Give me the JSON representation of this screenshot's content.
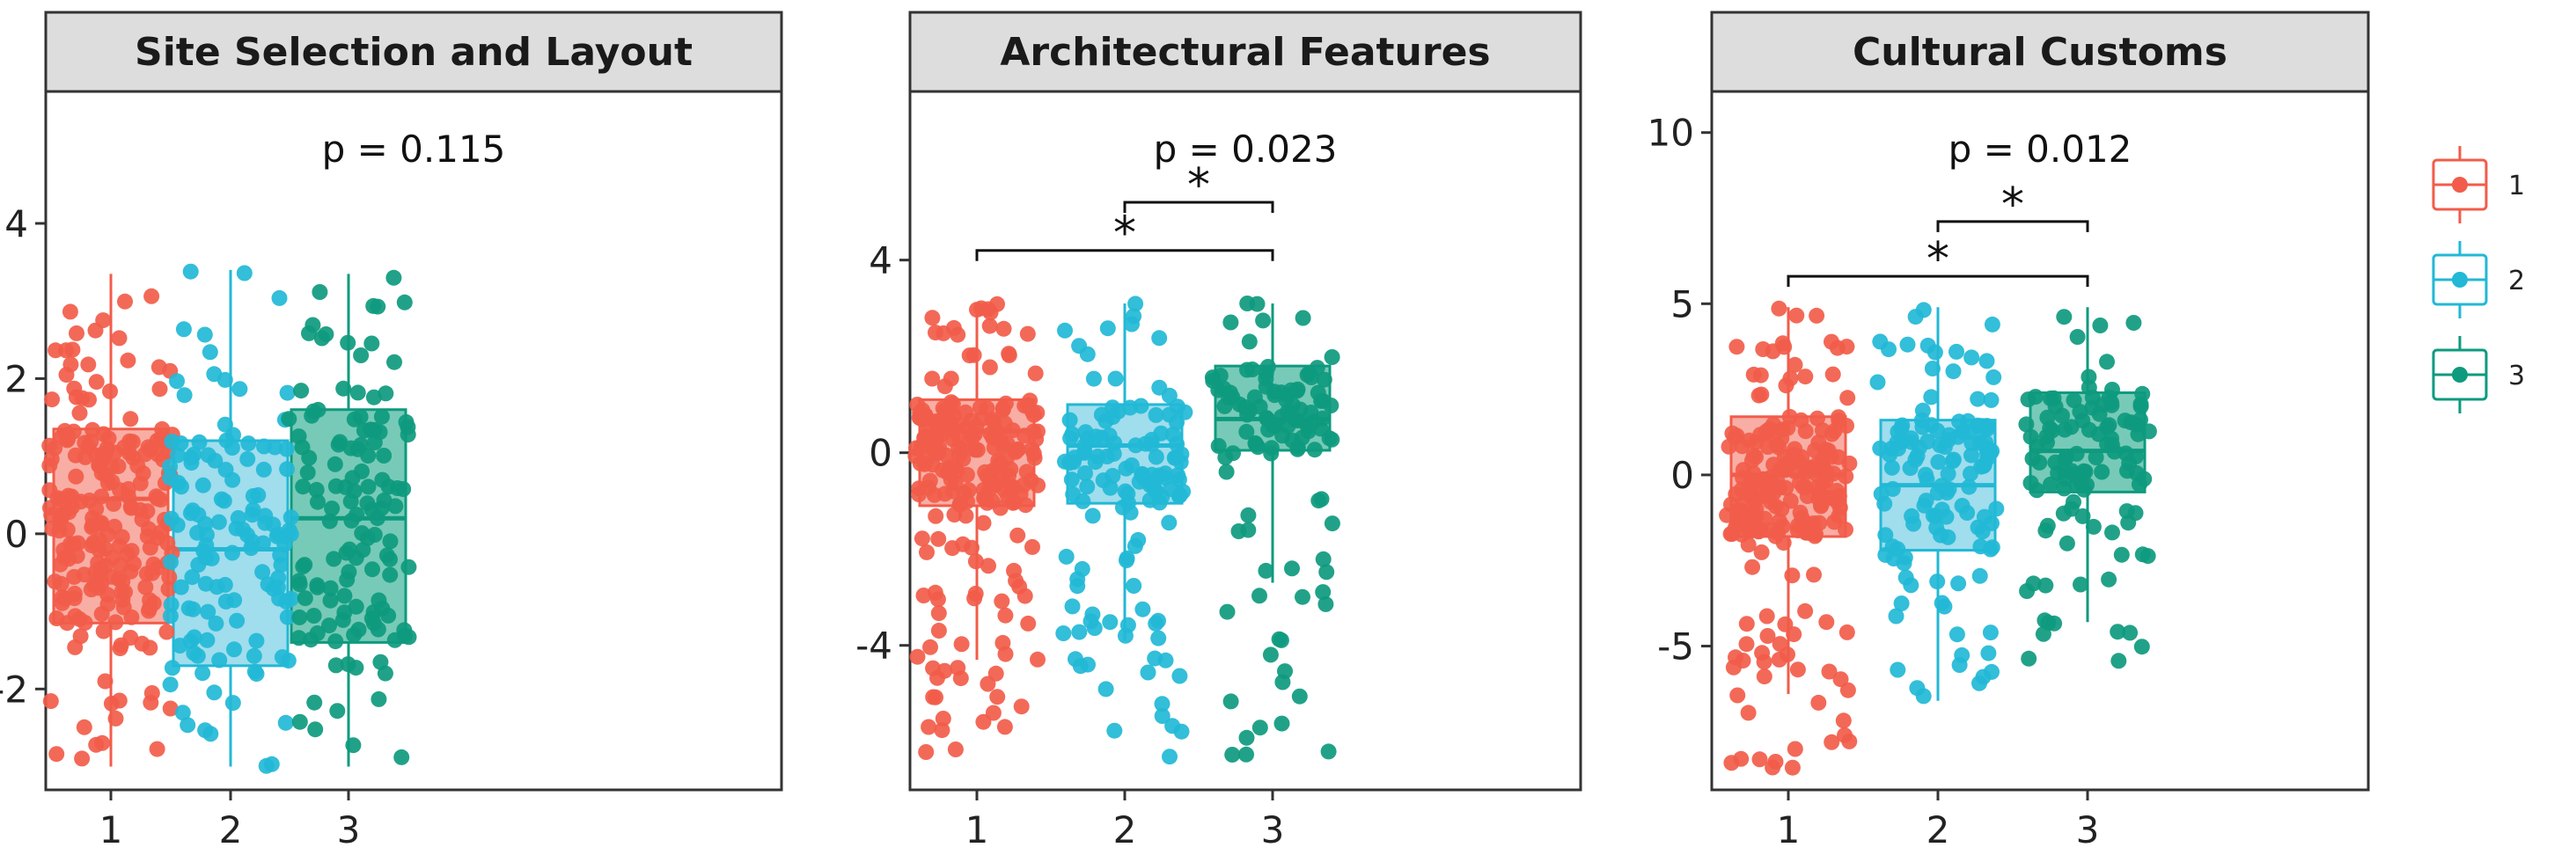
{
  "chart_data": [
    {
      "type": "boxplot",
      "title": "Site Selection and Layout",
      "annotation": "p = 0.115",
      "categories": [
        "1",
        "2",
        "3"
      ],
      "ylim": [
        -3.3,
        5.7
      ],
      "yticks": [
        -2,
        0,
        2,
        4
      ],
      "ytick_labels": [
        "-2",
        "0",
        "2",
        "4"
      ],
      "boxes": [
        {
          "group": "1",
          "whisker_low": -3.0,
          "q1": -1.15,
          "median": 0.45,
          "q3": 1.35,
          "whisker_high": 3.35
        },
        {
          "group": "2",
          "whisker_low": -3.0,
          "q1": -1.7,
          "median": -0.2,
          "q3": 1.2,
          "whisker_high": 3.4
        },
        {
          "group": "3",
          "whisker_low": -3.0,
          "q1": -1.4,
          "median": 0.2,
          "q3": 1.6,
          "whisker_high": 3.35
        }
      ],
      "brackets": [],
      "points": {
        "1": {
          "n": 220,
          "spread": [
            -3.0,
            3.35
          ],
          "mid": [
            -1.15,
            1.35
          ]
        },
        "2": {
          "n": 130,
          "spread": [
            -3.0,
            3.4
          ],
          "mid": [
            -1.7,
            1.2
          ]
        },
        "3": {
          "n": 130,
          "spread": [
            -3.0,
            3.35
          ],
          "mid": [
            -1.4,
            1.6
          ]
        }
      }
    },
    {
      "type": "boxplot",
      "title": "Architectural Features",
      "annotation": "p = 0.023",
      "categories": [
        "1",
        "2",
        "3"
      ],
      "ylim": [
        -7.0,
        7.5
      ],
      "yticks": [
        -4,
        0,
        4
      ],
      "ytick_labels": [
        "-4",
        "0",
        "4"
      ],
      "boxes": [
        {
          "group": "1",
          "whisker_low": -4.3,
          "q1": -1.1,
          "median": 0.45,
          "q3": 1.1,
          "whisker_high": 3.1
        },
        {
          "group": "2",
          "whisker_low": -3.9,
          "q1": -1.05,
          "median": 0.15,
          "q3": 1.0,
          "whisker_high": 3.1
        },
        {
          "group": "3",
          "whisker_low": -2.7,
          "q1": 0.05,
          "median": 0.7,
          "q3": 1.8,
          "whisker_high": 3.1
        }
      ],
      "brackets": [
        {
          "from": "2",
          "to": "3",
          "y": 5.2,
          "label": "*"
        },
        {
          "from": "1",
          "to": "3",
          "y": 4.2,
          "label": "*"
        }
      ],
      "points": {
        "1": {
          "n": 220,
          "spread": [
            -6.3,
            3.1
          ],
          "mid": [
            -1.1,
            1.1
          ]
        },
        "2": {
          "n": 130,
          "spread": [
            -6.5,
            3.1
          ],
          "mid": [
            -1.05,
            1.0
          ]
        },
        "3": {
          "n": 110,
          "spread": [
            -6.5,
            3.1
          ],
          "mid": [
            0.05,
            1.8
          ]
        }
      }
    },
    {
      "type": "boxplot",
      "title": "Cultural Customs",
      "annotation": "p = 0.012",
      "categories": [
        "1",
        "2",
        "3"
      ],
      "ylim": [
        -9.2,
        11.2
      ],
      "yticks": [
        -5,
        0,
        5,
        10
      ],
      "ytick_labels": [
        "-5",
        "0",
        "5",
        "10"
      ],
      "boxes": [
        {
          "group": "1",
          "whisker_low": -6.4,
          "q1": -1.8,
          "median": 0.0,
          "q3": 1.7,
          "whisker_high": 4.9
        },
        {
          "group": "2",
          "whisker_low": -6.6,
          "q1": -2.2,
          "median": -0.3,
          "q3": 1.6,
          "whisker_high": 4.9
        },
        {
          "group": "3",
          "whisker_low": -4.3,
          "q1": -0.5,
          "median": 0.7,
          "q3": 2.4,
          "whisker_high": 4.9
        }
      ],
      "brackets": [
        {
          "from": "2",
          "to": "3",
          "y": 7.4,
          "label": "*"
        },
        {
          "from": "1",
          "to": "3",
          "y": 5.8,
          "label": "*"
        }
      ],
      "points": {
        "1": {
          "n": 220,
          "spread": [
            -8.6,
            4.9
          ],
          "mid": [
            -1.8,
            1.7
          ]
        },
        "2": {
          "n": 130,
          "spread": [
            -6.6,
            4.9
          ],
          "mid": [
            -2.2,
            1.6
          ]
        },
        "3": {
          "n": 110,
          "spread": [
            -5.5,
            4.9
          ],
          "mid": [
            -0.5,
            2.4
          ]
        }
      }
    }
  ],
  "legend": {
    "position": "right",
    "entries": [
      {
        "label": "1",
        "color": "#F25C4A"
      },
      {
        "label": "2",
        "color": "#22B8D6"
      },
      {
        "label": "3",
        "color": "#0E9A7E"
      }
    ]
  },
  "style": {
    "strip_fill": "#DDDDDD",
    "panel_border": "#333333",
    "box_fills": [
      "#F7A095",
      "#8FD7EA",
      "#5FC1AA"
    ]
  }
}
